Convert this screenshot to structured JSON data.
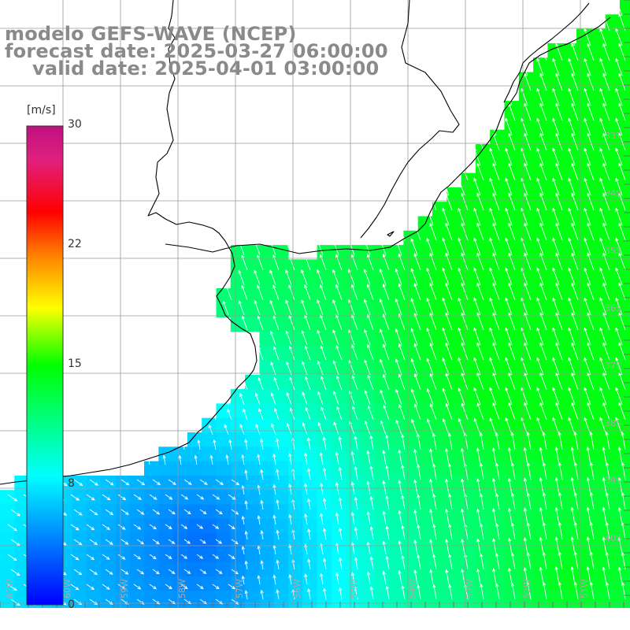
{
  "title": {
    "line1": "modelo GEFS-WAVE (NCEP)",
    "line2": "forecast date: 2025-03-27 06:00:00",
    "line3": "valid date: 2025-04-01 03:00:00"
  },
  "colorbar": {
    "unit": "[m/s]",
    "ticks": [
      "30",
      "22",
      "15",
      "8",
      "0"
    ],
    "tick_values": [
      30,
      22,
      15,
      8,
      0
    ],
    "range": [
      0,
      30
    ],
    "stops": [
      "#0000ff",
      "#00ffff",
      "#00ff00",
      "#ffff00",
      "#ff8000",
      "#ff0000",
      "#ff00c0",
      "#c00080"
    ]
  },
  "map": {
    "variable": "wind speed",
    "lat_labels": [
      "33S",
      "34S",
      "35S",
      "36S",
      "37S",
      "38S",
      "39S",
      "40S"
    ],
    "lon_labels": [
      "61W",
      "60W",
      "59W",
      "58W",
      "57W",
      "56W",
      "55W",
      "54W",
      "53W",
      "52W",
      "51W"
    ],
    "land_color": "#ffffff",
    "coast_color": "#000000",
    "grid_color": "#999999"
  }
}
